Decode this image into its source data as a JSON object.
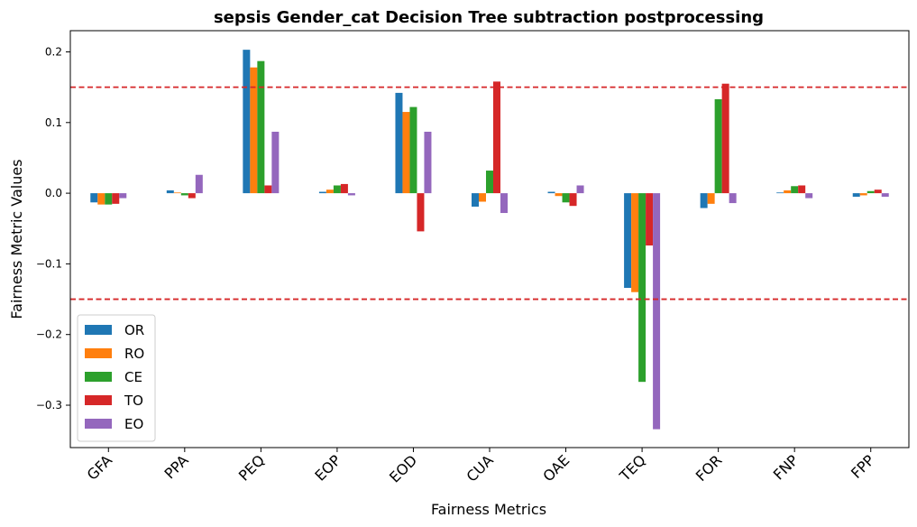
{
  "chart_data": {
    "type": "bar",
    "title": "sepsis Gender_cat Decision Tree subtraction postprocessing",
    "xlabel": "Fairness Metrics",
    "ylabel": "Fairness Metric Values",
    "categories": [
      "GFA",
      "PPA",
      "PEQ",
      "EOP",
      "EOD",
      "CUA",
      "OAE",
      "TEQ",
      "FOR",
      "FNP",
      "FPP"
    ],
    "ylim": [
      -0.36,
      0.23
    ],
    "yticks": [
      -0.3,
      -0.2,
      -0.1,
      0.0,
      0.1,
      0.2
    ],
    "ytick_labels": [
      "−0.3",
      "−0.2",
      "−0.1",
      "0.0",
      "0.1",
      "0.2"
    ],
    "threshold_lines": [
      0.15,
      -0.15
    ],
    "threshold_color": "#d62728",
    "grid": false,
    "legend_position": "lower-left",
    "series": [
      {
        "name": "OR",
        "color": "#1f77b4",
        "values": [
          -0.013,
          0.004,
          0.203,
          0.002,
          0.142,
          -0.019,
          0.002,
          -0.134,
          -0.021,
          0.001,
          -0.005
        ]
      },
      {
        "name": "RO",
        "color": "#ff7f0e",
        "values": [
          -0.016,
          0.001,
          0.178,
          0.005,
          0.115,
          -0.012,
          -0.004,
          -0.14,
          -0.015,
          0.004,
          -0.003
        ]
      },
      {
        "name": "CE",
        "color": "#2ca02c",
        "values": [
          -0.016,
          -0.003,
          0.187,
          0.011,
          0.122,
          0.032,
          -0.013,
          -0.267,
          0.133,
          0.01,
          0.003
        ]
      },
      {
        "name": "TO",
        "color": "#d62728",
        "values": [
          -0.015,
          -0.007,
          0.011,
          0.013,
          -0.054,
          0.158,
          -0.018,
          -0.074,
          0.155,
          0.011,
          0.005
        ]
      },
      {
        "name": "EO",
        "color": "#9467bd",
        "values": [
          -0.007,
          0.026,
          0.087,
          -0.003,
          0.087,
          -0.028,
          0.011,
          -0.334,
          -0.014,
          -0.007,
          -0.005
        ]
      }
    ]
  }
}
